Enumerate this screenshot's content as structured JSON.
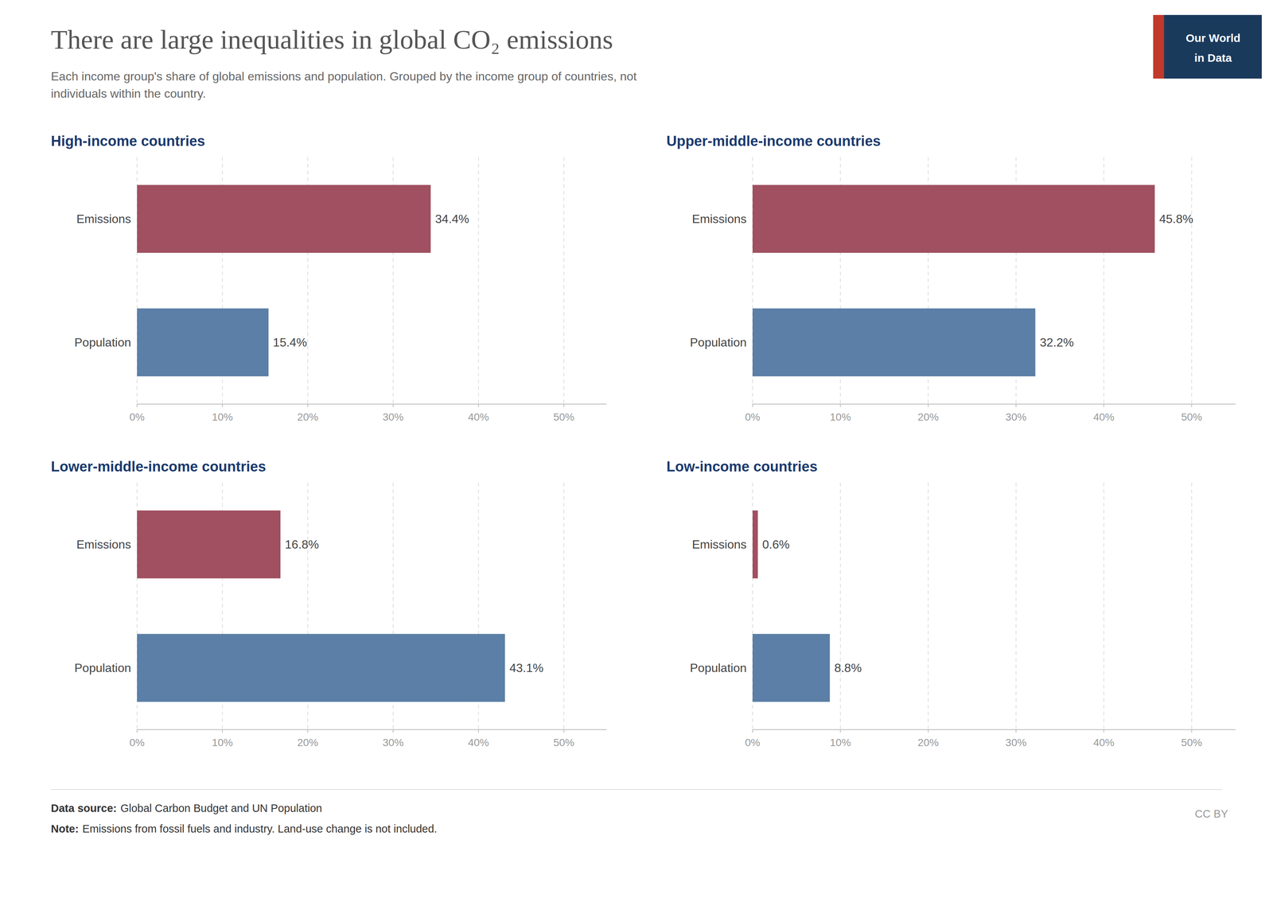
{
  "title": "There are large inequalities in global CO₂ emissions",
  "subtitle": "Each income group's share of global emissions and population. Grouped by the income group of countries, not\nindividuals within the country.",
  "annotations": [
    "Data source:",
    "Global Carbon Budget and UN Population",
    "Note:",
    "Emissions from fossil fuels and industry. Land-use change is not included.",
    "CC BY",
    "Our World",
    "in Data"
  ],
  "chart_data": [
    {
      "type": "bar",
      "orientation": "horizontal",
      "title": "High-income countries",
      "categories": [
        "Emissions",
        "Population"
      ],
      "values": [
        34.4,
        15.4
      ],
      "value_labels": [
        "34.4%",
        "15.4%"
      ],
      "colors": [
        "#a05060",
        "#5b7fa6"
      ],
      "data_labels": true,
      "grid": true,
      "xlim": [
        0,
        55
      ],
      "xticks": [
        {
          "value": 0,
          "label": "0%"
        },
        {
          "value": 10,
          "label": "10%"
        },
        {
          "value": 20,
          "label": "20%"
        },
        {
          "value": 30,
          "label": "30%"
        },
        {
          "value": 40,
          "label": "40%"
        },
        {
          "value": 50,
          "label": "50%"
        }
      ]
    },
    {
      "type": "bar",
      "orientation": "horizontal",
      "title": "Upper-middle-income countries",
      "categories": [
        "Emissions",
        "Population"
      ],
      "values": [
        45.8,
        32.2
      ],
      "value_labels": [
        "45.8%",
        "32.2%"
      ],
      "colors": [
        "#a05060",
        "#5b7fa6"
      ],
      "data_labels": true,
      "grid": true,
      "xlim": [
        0,
        55
      ],
      "xticks": [
        {
          "value": 0,
          "label": "0%"
        },
        {
          "value": 10,
          "label": "10%"
        },
        {
          "value": 20,
          "label": "20%"
        },
        {
          "value": 30,
          "label": "30%"
        },
        {
          "value": 40,
          "label": "40%"
        },
        {
          "value": 50,
          "label": "50%"
        }
      ]
    },
    {
      "type": "bar",
      "orientation": "horizontal",
      "title": "Lower-middle-income countries",
      "categories": [
        "Emissions",
        "Population"
      ],
      "values": [
        16.8,
        43.1
      ],
      "value_labels": [
        "16.8%",
        "43.1%"
      ],
      "colors": [
        "#a05060",
        "#5b7fa6"
      ],
      "data_labels": true,
      "grid": true,
      "xlim": [
        0,
        55
      ],
      "xticks": [
        {
          "value": 0,
          "label": "0%"
        },
        {
          "value": 10,
          "label": "10%"
        },
        {
          "value": 20,
          "label": "20%"
        },
        {
          "value": 30,
          "label": "30%"
        },
        {
          "value": 40,
          "label": "40%"
        },
        {
          "value": 50,
          "label": "50%"
        }
      ]
    },
    {
      "type": "bar",
      "orientation": "horizontal",
      "title": "Low-income countries",
      "categories": [
        "Emissions",
        "Population"
      ],
      "values": [
        0.6,
        8.8
      ],
      "value_labels": [
        "0.6%",
        "8.8%"
      ],
      "colors": [
        "#a05060",
        "#5b7fa6"
      ],
      "data_labels": true,
      "grid": true,
      "xlim": [
        0,
        55
      ],
      "xticks": [
        {
          "value": 0,
          "label": "0%"
        },
        {
          "value": 10,
          "label": "10%"
        },
        {
          "value": 20,
          "label": "20%"
        },
        {
          "value": 30,
          "label": "30%"
        },
        {
          "value": 40,
          "label": "40%"
        },
        {
          "value": 50,
          "label": "50%"
        }
      ]
    }
  ]
}
